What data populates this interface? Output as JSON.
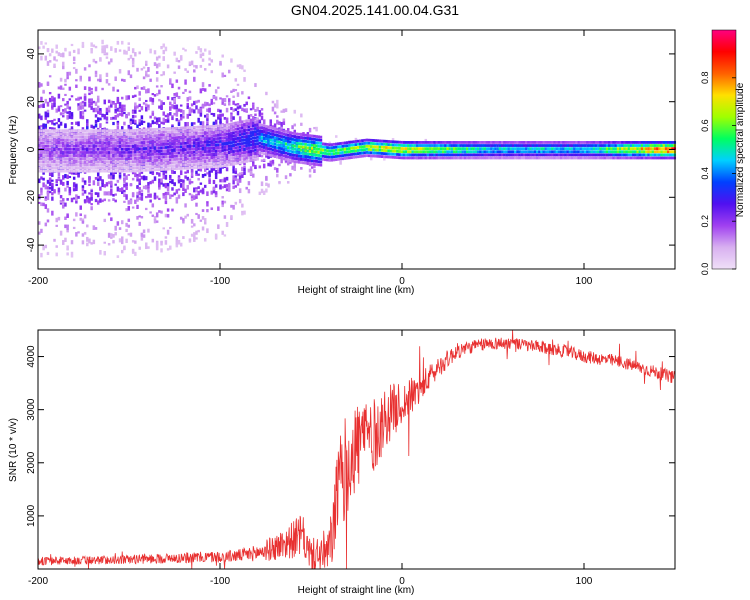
{
  "title": "GN04.2025.141.00.04.G31",
  "colors": {
    "snr_line": "#e83030",
    "frame": "#000000",
    "background": "#ffffff"
  },
  "chart_data": [
    {
      "type": "heatmap",
      "name": "spectrogram",
      "xlabel": "Height of straight line (km)",
      "ylabel": "Frequency (Hz)",
      "xlim": [
        -200,
        150
      ],
      "ylim": [
        -50,
        50
      ],
      "xticks": [
        {
          "value": -200,
          "label": "-200"
        },
        {
          "value": -100,
          "label": "-100"
        },
        {
          "value": 0,
          "label": "0"
        },
        {
          "value": 100,
          "label": "100"
        }
      ],
      "yticks": [
        {
          "value": -40,
          "label": "-40"
        },
        {
          "value": -20,
          "label": "-20"
        },
        {
          "value": 0,
          "label": "0"
        },
        {
          "value": 20,
          "label": "20"
        },
        {
          "value": 40,
          "label": "40"
        }
      ],
      "colorbar": {
        "label": "Normalized spectral amplitude",
        "range": [
          0,
          1
        ],
        "ticks": [
          {
            "value": 0.0,
            "label": "0.0"
          },
          {
            "value": 0.2,
            "label": "0.2"
          },
          {
            "value": 0.4,
            "label": "0.4"
          },
          {
            "value": 0.6,
            "label": "0.6"
          },
          {
            "value": 0.8,
            "label": "0.8"
          }
        ],
        "colormap": [
          "#f0e0f8",
          "#d8b0f0",
          "#a040f0",
          "#5010f0",
          "#0040ff",
          "#00d0ff",
          "#00ff60",
          "#a0ff00",
          "#ffe000",
          "#ff6000",
          "#ff0000",
          "#ff0080"
        ]
      },
      "ridge": {
        "description_points_x": [
          -200,
          -150,
          -100,
          -80,
          -70,
          -60,
          -50,
          -40,
          -30,
          -20,
          0,
          50,
          100,
          150
        ],
        "center_frequency": [
          0,
          0,
          2,
          5,
          3,
          1,
          0,
          -1,
          0,
          1,
          0,
          0,
          0,
          0
        ],
        "amplitude": [
          0.2,
          0.25,
          0.3,
          0.45,
          0.5,
          0.55,
          0.7,
          0.6,
          0.65,
          0.7,
          0.75,
          0.5,
          0.5,
          0.95
        ],
        "noise_spread_hz": [
          45,
          45,
          40,
          25,
          18,
          15,
          12,
          8,
          6,
          5,
          4,
          3,
          3,
          3
        ]
      }
    },
    {
      "type": "line",
      "name": "snr",
      "xlabel": "Height of straight line (km)",
      "ylabel": "SNR (10 * v/v)",
      "xlim": [
        -200,
        150
      ],
      "ylim": [
        0,
        4500
      ],
      "xticks": [
        {
          "value": -200,
          "label": "-200"
        },
        {
          "value": -100,
          "label": "-100"
        },
        {
          "value": 0,
          "label": "0"
        },
        {
          "value": 100,
          "label": "100"
        }
      ],
      "yticks": [
        {
          "value": 1000,
          "label": "1000"
        },
        {
          "value": 2000,
          "label": "2000"
        },
        {
          "value": 3000,
          "label": "3000"
        },
        {
          "value": 4000,
          "label": "4000"
        }
      ],
      "series": [
        {
          "name": "SNR",
          "x": [
            -200,
            -180,
            -160,
            -140,
            -120,
            -100,
            -90,
            -80,
            -70,
            -60,
            -55,
            -50,
            -40,
            -35,
            -30,
            -25,
            -20,
            -15,
            -10,
            -5,
            0,
            10,
            20,
            30,
            40,
            50,
            60,
            70,
            80,
            90,
            100,
            110,
            120,
            130,
            140,
            150
          ],
          "y": [
            150,
            160,
            170,
            190,
            210,
            230,
            250,
            300,
            400,
            550,
            650,
            250,
            300,
            1500,
            2000,
            2300,
            2600,
            2500,
            2800,
            3000,
            3100,
            3400,
            3800,
            4100,
            4200,
            4250,
            4250,
            4200,
            4150,
            4100,
            4000,
            3950,
            3900,
            3800,
            3700,
            3600
          ],
          "noise_amplitude": [
            80,
            80,
            80,
            90,
            100,
            110,
            120,
            150,
            250,
            350,
            400,
            300,
            500,
            900,
            1000,
            900,
            800,
            700,
            600,
            500,
            400,
            300,
            200,
            150,
            120,
            120,
            120,
            120,
            120,
            120,
            120,
            120,
            120,
            120,
            120,
            120
          ]
        }
      ]
    }
  ]
}
